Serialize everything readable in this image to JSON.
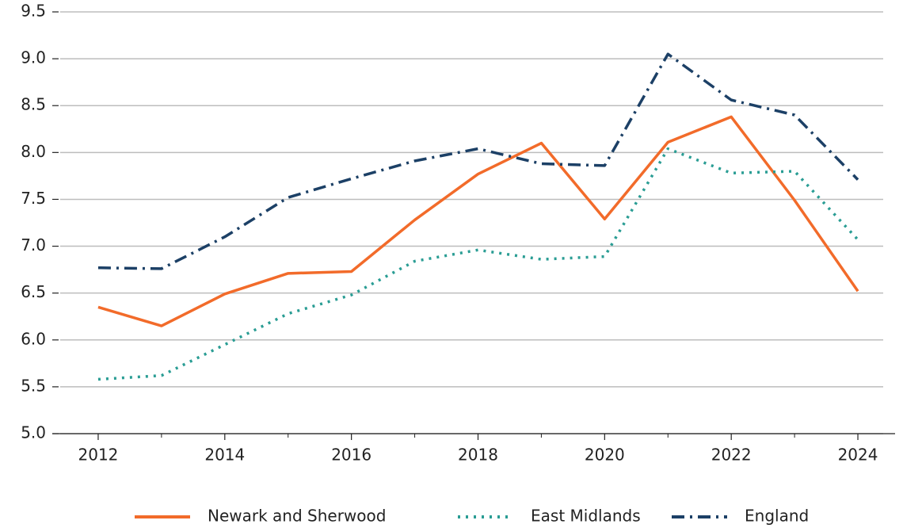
{
  "chart_data": {
    "type": "line",
    "x": [
      2012,
      2013,
      2014,
      2015,
      2016,
      2017,
      2018,
      2019,
      2020,
      2021,
      2022,
      2023,
      2024
    ],
    "series": [
      {
        "name": "Newark and Sherwood",
        "color": "#f26b2a",
        "linestyle": "solid",
        "values": [
          6.35,
          6.15,
          6.49,
          6.71,
          6.73,
          7.28,
          7.77,
          8.1,
          7.29,
          8.11,
          8.38,
          7.49,
          6.52
        ]
      },
      {
        "name": "East Midlands",
        "color": "#2a9d94",
        "linestyle": "dotted",
        "values": [
          5.58,
          5.62,
          5.95,
          6.28,
          6.48,
          6.84,
          6.96,
          6.86,
          6.89,
          8.04,
          7.78,
          7.8,
          7.07
        ]
      },
      {
        "name": "England",
        "color": "#1c4066",
        "linestyle": "dashdot",
        "values": [
          6.77,
          6.76,
          7.1,
          7.52,
          7.72,
          7.91,
          8.04,
          7.88,
          7.86,
          9.05,
          8.56,
          8.4,
          7.71
        ]
      }
    ],
    "xlim": [
      2011.4,
      2024.4
    ],
    "xticks": [
      2012,
      2014,
      2016,
      2018,
      2020,
      2022,
      2024
    ],
    "xminorticks": [
      2013,
      2015,
      2017,
      2019,
      2021,
      2023
    ],
    "ylim": [
      5.0,
      9.5
    ],
    "yticks": [
      {
        "value": 5,
        "label": "5.0"
      },
      5.5,
      {
        "value": 6,
        "label": "6.0"
      },
      6.5,
      {
        "value": 7,
        "label": "7.0"
      },
      7.5,
      {
        "value": 8,
        "label": "8.0"
      },
      8.5,
      {
        "value": 9,
        "label": "9.0"
      },
      9.5
    ],
    "grid": true,
    "legend": "bottom"
  }
}
